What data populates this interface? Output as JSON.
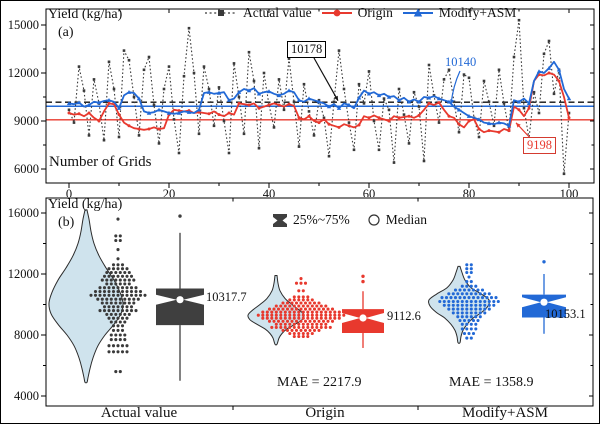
{
  "colors": {
    "black": "#3a3a3a",
    "red": "#e8392e",
    "blue": "#2269d6",
    "box_dark": "#3f3f3f",
    "violin_fill": "#cfe3ed",
    "violin_edge": "#2b2b2b",
    "axis": "#000000",
    "ref_black": "#111111"
  },
  "chart_data": [
    {
      "type": "line",
      "tag": "(a)",
      "ylabel": "Yield (kg/ha)",
      "xlabel": "Number of Grids",
      "xlim": [
        -4.6,
        105
      ],
      "ylim": [
        5125,
        16000
      ],
      "xticks": [
        0,
        20,
        40,
        60,
        80,
        100
      ],
      "xticks_minor": [
        10,
        30,
        50,
        70,
        90
      ],
      "yticks": [
        6000,
        9000,
        12000,
        15000
      ],
      "yticks_minor": [
        7500,
        10500,
        13500
      ],
      "x_start": 0,
      "x_step": 1,
      "ref_lines": [
        {
          "label": "10178",
          "value": 10178,
          "color": "ref_black",
          "dash": true
        },
        {
          "label": "10140",
          "value": 10140,
          "color": "blue",
          "dash": false
        },
        {
          "label": "9198",
          "value": 9198,
          "color": "red",
          "dash": false
        }
      ],
      "series": [
        {
          "name": "Actual value",
          "color": "black",
          "marker": "square",
          "dash": true,
          "values": [
            9700,
            8900,
            12400,
            10900,
            8100,
            11600,
            10100,
            7800,
            12700,
            11000,
            8000,
            13400,
            12800,
            10500,
            8100,
            12200,
            13000,
            10000,
            7600,
            11000,
            12400,
            9100,
            7000,
            11800,
            14800,
            12000,
            8200,
            12400,
            11000,
            8700,
            11100,
            9000,
            7000,
            12600,
            10500,
            8200,
            13300,
            11500,
            7300,
            12000,
            10000,
            8600,
            11600,
            9700,
            12900,
            10200,
            7400,
            11300,
            9600,
            8100,
            10300,
            9200,
            6800,
            10200,
            13400,
            11000,
            8900,
            7200,
            11300,
            10100,
            12100,
            9000,
            7200,
            10400,
            9700,
            6400,
            11000,
            9400,
            7600,
            10800,
            9900,
            6500,
            12500,
            10600,
            8900,
            11600,
            12200,
            10200,
            8300,
            11900,
            11700,
            9200,
            8000,
            11500,
            10200,
            8700,
            12200,
            10100,
            8400,
            13000,
            15300,
            9800,
            7900,
            10800,
            9500,
            13200,
            14000,
            10700,
            12200,
            5700,
            9500
          ]
        },
        {
          "name": "Origin",
          "color": "red",
          "marker": "circle",
          "dash": false,
          "values": [
            9500,
            9400,
            9450,
            9300,
            9500,
            9200,
            9000,
            9600,
            10100,
            10050,
            9400,
            8900,
            8700,
            8550,
            8500,
            8450,
            8500,
            8600,
            8500,
            8550,
            9400,
            9700,
            9650,
            9600,
            9650,
            9500,
            9550,
            9500,
            9450,
            9600,
            9400,
            9300,
            9500,
            9400,
            10100,
            10050,
            10000,
            10100,
            9800,
            9900,
            10000,
            10100,
            10000,
            9900,
            10050,
            9950,
            9200,
            9100,
            9300,
            9000,
            8900,
            9100,
            8800,
            8700,
            8600,
            8800,
            8700,
            8600,
            8750,
            9300,
            9200,
            9350,
            9200,
            9100,
            9000,
            9300,
            9200,
            9250,
            9300,
            9200,
            9350,
            9700,
            10100,
            10000,
            10150,
            9700,
            9300,
            9200,
            8800,
            8600,
            9000,
            9100,
            8500,
            8300,
            8400,
            8350,
            8300,
            8500,
            8400,
            9900,
            9700,
            9300,
            9800,
            11500,
            11900,
            11850,
            12000,
            11900,
            11500,
            10500,
            9200
          ]
        },
        {
          "name": "Modify+ASM",
          "color": "blue",
          "marker": "triangle",
          "dash": false,
          "values": [
            10100,
            10050,
            10150,
            9900,
            10000,
            10200,
            10150,
            10250,
            10300,
            10200,
            9800,
            10600,
            10800,
            10750,
            10400,
            9600,
            9500,
            9550,
            9700,
            9600,
            9500,
            9450,
            9500,
            9600,
            9550,
            9500,
            9700,
            10750,
            10800,
            10700,
            10750,
            10800,
            10300,
            10400,
            10800,
            11000,
            10900,
            11050,
            10700,
            10800,
            10850,
            10700,
            10600,
            10700,
            10900,
            10800,
            10300,
            10200,
            10400,
            10300,
            10200,
            10100,
            9900,
            10050,
            9800,
            10100,
            10000,
            9800,
            10450,
            10900,
            10700,
            10800,
            10600,
            10700,
            10500,
            10550,
            10300,
            10450,
            10200,
            10350,
            10200,
            10500,
            10450,
            10550,
            10400,
            10300,
            10200,
            9900,
            9700,
            9500,
            9300,
            9200,
            9100,
            8900,
            8850,
            8800,
            8900,
            8850,
            8700,
            10300,
            10200,
            10400,
            10100,
            11500,
            12100,
            12000,
            12300,
            12700,
            12200,
            11000,
            10400
          ]
        }
      ]
    },
    {
      "type": "violin-box",
      "tag": "(b)",
      "ylabel": "Yield (kg/ha)",
      "ylim": [
        3340,
        16980
      ],
      "yticks": [
        4000,
        8000,
        12000,
        16000
      ],
      "yticks_minor": [
        6000,
        10000,
        14000
      ],
      "legend": {
        "iqr_label": "25%~75%",
        "median_label": "Median"
      },
      "groups": [
        {
          "label": "Actual value",
          "color": "black",
          "median": 10317.7,
          "median_label": "10317.7",
          "q1": 8650,
          "q3": 11050,
          "whisker_low": 5000,
          "whisker_high": 14700,
          "outliers": [
            15800
          ],
          "violin": [
            [
              16200,
              1
            ],
            [
              15600,
              3
            ],
            [
              14800,
              5
            ],
            [
              14000,
              8
            ],
            [
              13200,
              13
            ],
            [
              12400,
              20
            ],
            [
              11600,
              28
            ],
            [
              10800,
              34
            ],
            [
              10100,
              37
            ],
            [
              9400,
              35
            ],
            [
              8700,
              28
            ],
            [
              8000,
              19
            ],
            [
              7300,
              12
            ],
            [
              6500,
              7
            ],
            [
              5800,
              4
            ],
            [
              5200,
              2
            ],
            [
              4900,
              1
            ]
          ],
          "dots": [
            [
              15600,
              1
            ],
            [
              14500,
              2
            ],
            [
              14200,
              2
            ],
            [
              13600,
              1
            ],
            [
              13000,
              1
            ],
            [
              12600,
              3
            ],
            [
              12350,
              5
            ],
            [
              12100,
              6
            ],
            [
              11850,
              7
            ],
            [
              11600,
              8
            ],
            [
              11350,
              6
            ],
            [
              11100,
              9
            ],
            [
              10850,
              11
            ],
            [
              10600,
              13
            ],
            [
              10350,
              10
            ],
            [
              10100,
              8
            ],
            [
              9850,
              7
            ],
            [
              9600,
              9
            ],
            [
              9350,
              6
            ],
            [
              9100,
              5
            ],
            [
              8850,
              4
            ],
            [
              8600,
              3
            ],
            [
              8300,
              3
            ],
            [
              8000,
              4
            ],
            [
              7700,
              4
            ],
            [
              7300,
              5
            ],
            [
              6900,
              5
            ],
            [
              5600,
              2
            ]
          ]
        },
        {
          "label": "Origin",
          "color": "red",
          "median": 9112.6,
          "median_label": "9112.6",
          "q1": 8130,
          "q3": 9700,
          "whisker_low": 7150,
          "whisker_high": 10870,
          "outliers": [
            11500,
            11850
          ],
          "mae": 2217.9,
          "mae_label": "MAE = 2217.9",
          "violin": [
            [
              11900,
              1
            ],
            [
              11400,
              2
            ],
            [
              10900,
              4
            ],
            [
              10400,
              9
            ],
            [
              10000,
              16
            ],
            [
              9600,
              24
            ],
            [
              9300,
              28
            ],
            [
              9000,
              26
            ],
            [
              8700,
              19
            ],
            [
              8400,
              11
            ],
            [
              8100,
              6
            ],
            [
              7800,
              3
            ],
            [
              7400,
              1
            ]
          ],
          "dots": [
            [
              11700,
              1
            ],
            [
              11400,
              3
            ],
            [
              10900,
              2
            ],
            [
              10500,
              4
            ],
            [
              10300,
              6
            ],
            [
              10100,
              9
            ],
            [
              9900,
              12
            ],
            [
              9700,
              15
            ],
            [
              9500,
              18
            ],
            [
              9300,
              20
            ],
            [
              9100,
              18
            ],
            [
              8900,
              15
            ],
            [
              8700,
              12
            ],
            [
              8500,
              14
            ],
            [
              8300,
              9
            ],
            [
              8100,
              6
            ],
            [
              7900,
              4
            ]
          ]
        },
        {
          "label": "Modify+ASM",
          "color": "blue",
          "median": 10153.1,
          "median_label": "10153.1",
          "q1": 9150,
          "q3": 10650,
          "whisker_low": 8080,
          "whisker_high": 12000,
          "outliers": [
            12800
          ],
          "mae": 1358.9,
          "mae_label": "MAE = 1358.9",
          "violin": [
            [
              12500,
              1
            ],
            [
              12100,
              3
            ],
            [
              11600,
              6
            ],
            [
              11100,
              12
            ],
            [
              10700,
              22
            ],
            [
              10300,
              30
            ],
            [
              9900,
              29
            ],
            [
              9500,
              23
            ],
            [
              9100,
              14
            ],
            [
              8700,
              8
            ],
            [
              8300,
              4
            ],
            [
              7900,
              2
            ],
            [
              7500,
              1
            ]
          ],
          "dots": [
            [
              12600,
              2
            ],
            [
              12350,
              2
            ],
            [
              12100,
              2
            ],
            [
              11800,
              1
            ],
            [
              11500,
              2
            ],
            [
              11200,
              4
            ],
            [
              10950,
              7
            ],
            [
              10700,
              10
            ],
            [
              10450,
              13
            ],
            [
              10200,
              14
            ],
            [
              9950,
              12
            ],
            [
              9700,
              10
            ],
            [
              9450,
              8
            ],
            [
              9200,
              6
            ],
            [
              8950,
              5
            ],
            [
              8700,
              4
            ],
            [
              8400,
              4
            ],
            [
              8100,
              3
            ],
            [
              7800,
              2
            ]
          ]
        }
      ]
    }
  ]
}
